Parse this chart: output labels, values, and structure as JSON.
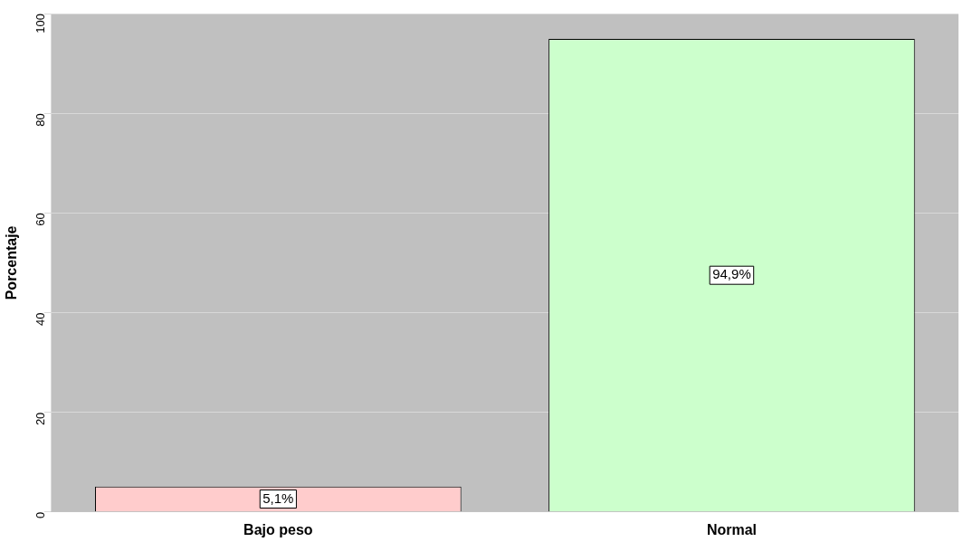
{
  "chart_data": {
    "type": "bar",
    "ylabel": "Porcentaje",
    "categories": [
      "Bajo peso",
      "Normal"
    ],
    "values": [
      5.1,
      94.9
    ],
    "colors": [
      "#ffcccc",
      "#ccffcc"
    ],
    "value_labels": [
      "5,1%",
      "94,9%"
    ],
    "ylim": [
      0,
      100
    ],
    "yticks": [
      0,
      20,
      40,
      60,
      80,
      100
    ],
    "grid": "y",
    "legend": false
  }
}
